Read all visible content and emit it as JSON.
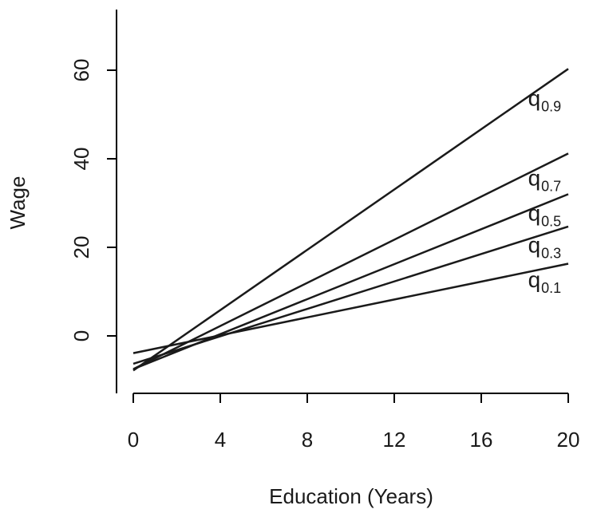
{
  "chart_data": {
    "type": "line",
    "title": "",
    "xlabel": "Education (Years)",
    "ylabel": "Wage",
    "xlim": [
      0,
      20
    ],
    "ylim": [
      -13,
      74
    ],
    "xticks": [
      0,
      4,
      8,
      12,
      16,
      20
    ],
    "yticks": [
      0,
      20,
      40,
      60
    ],
    "grid": false,
    "x": [
      0,
      20
    ],
    "series": [
      {
        "name": "q0.9",
        "base": "q",
        "sub": "0.9",
        "values": [
          -7.8,
          60.3
        ]
      },
      {
        "name": "q0.7",
        "base": "q",
        "sub": "0.7",
        "values": [
          -7.5,
          41.2
        ]
      },
      {
        "name": "q0.5",
        "base": "q",
        "sub": "0.5",
        "values": [
          -7.5,
          32.0
        ]
      },
      {
        "name": "q0.3",
        "base": "q",
        "sub": "0.3",
        "values": [
          -6.3,
          24.7
        ]
      },
      {
        "name": "q0.1",
        "base": "q",
        "sub": "0.1",
        "values": [
          -3.9,
          16.3
        ]
      }
    ],
    "labels": [
      {
        "series": "q0.9",
        "x": 18.15,
        "y": 52.0
      },
      {
        "series": "q0.7",
        "x": 18.15,
        "y": 34.0
      },
      {
        "series": "q0.5",
        "x": 18.15,
        "y": 26.0
      },
      {
        "series": "q0.3",
        "x": 18.15,
        "y": 18.8
      },
      {
        "series": "q0.1",
        "x": 18.15,
        "y": 11.0
      }
    ]
  }
}
